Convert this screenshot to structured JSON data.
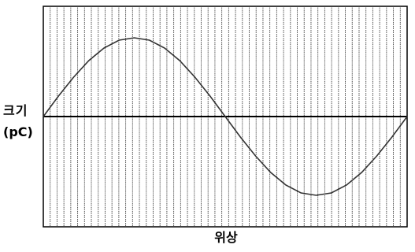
{
  "chart_data": {
    "type": "line",
    "title": "",
    "xlabel": "위상",
    "ylabel_lines": [
      "크기",
      "(pC)"
    ],
    "xlim": [
      0,
      360
    ],
    "ylim": [
      -1.4,
      1.4
    ],
    "grid": {
      "vertical": true,
      "horizontal": false,
      "vertical_count": 53
    },
    "x": [
      0,
      15,
      30,
      45,
      60,
      75,
      90,
      105,
      120,
      135,
      150,
      165,
      180,
      195,
      210,
      225,
      240,
      255,
      270,
      285,
      300,
      315,
      330,
      345,
      360
    ],
    "series": [
      {
        "values": [
          0,
          0.26,
          0.5,
          0.71,
          0.87,
          0.97,
          1.0,
          0.97,
          0.87,
          0.71,
          0.5,
          0.26,
          0,
          -0.26,
          -0.5,
          -0.71,
          -0.87,
          -0.97,
          -1.0,
          -0.97,
          -0.87,
          -0.71,
          -0.5,
          -0.26,
          0
        ]
      }
    ],
    "colors": {
      "line": "#333333",
      "grid": "#444444",
      "axis": "#000000"
    }
  }
}
